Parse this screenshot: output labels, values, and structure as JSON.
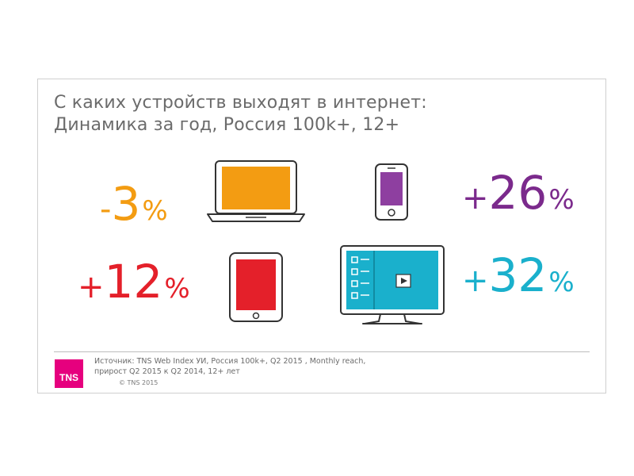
{
  "title": {
    "line1": "С каких устройств выходят в интернет:",
    "line2": "Динамика за год, Россия 100k+, 12+"
  },
  "stats": {
    "laptop": {
      "sign": "-",
      "value": "3",
      "unit": "%",
      "color": "#f39c12"
    },
    "smartphone": {
      "sign": "+",
      "value": "26",
      "unit": "%",
      "color": "#7b2a8c"
    },
    "tablet": {
      "sign": "+",
      "value": "12",
      "unit": "%",
      "color": "#e4202a"
    },
    "smarttv": {
      "sign": "+",
      "value": "32",
      "unit": "%",
      "color": "#1ab0cc"
    }
  },
  "devices": {
    "laptop": {
      "icon": "laptop-icon",
      "color": "#f39c12"
    },
    "smartphone": {
      "icon": "smartphone-icon",
      "color": "#8e3fa0"
    },
    "tablet": {
      "icon": "tablet-icon",
      "color": "#e4202a"
    },
    "smarttv": {
      "icon": "smart-tv-icon",
      "color": "#1ab0cc"
    }
  },
  "footer": {
    "logo_text": "TNS",
    "logo_color": "#e6007e",
    "source_line1": "Источник: TNS Web Index УИ, Россия 100k+,  Q2 2015 , Monthly reach,",
    "source_line2": "прирост Q2 2015 к Q2 2014, 12+ лет",
    "copyright": "© TNS 2015"
  }
}
